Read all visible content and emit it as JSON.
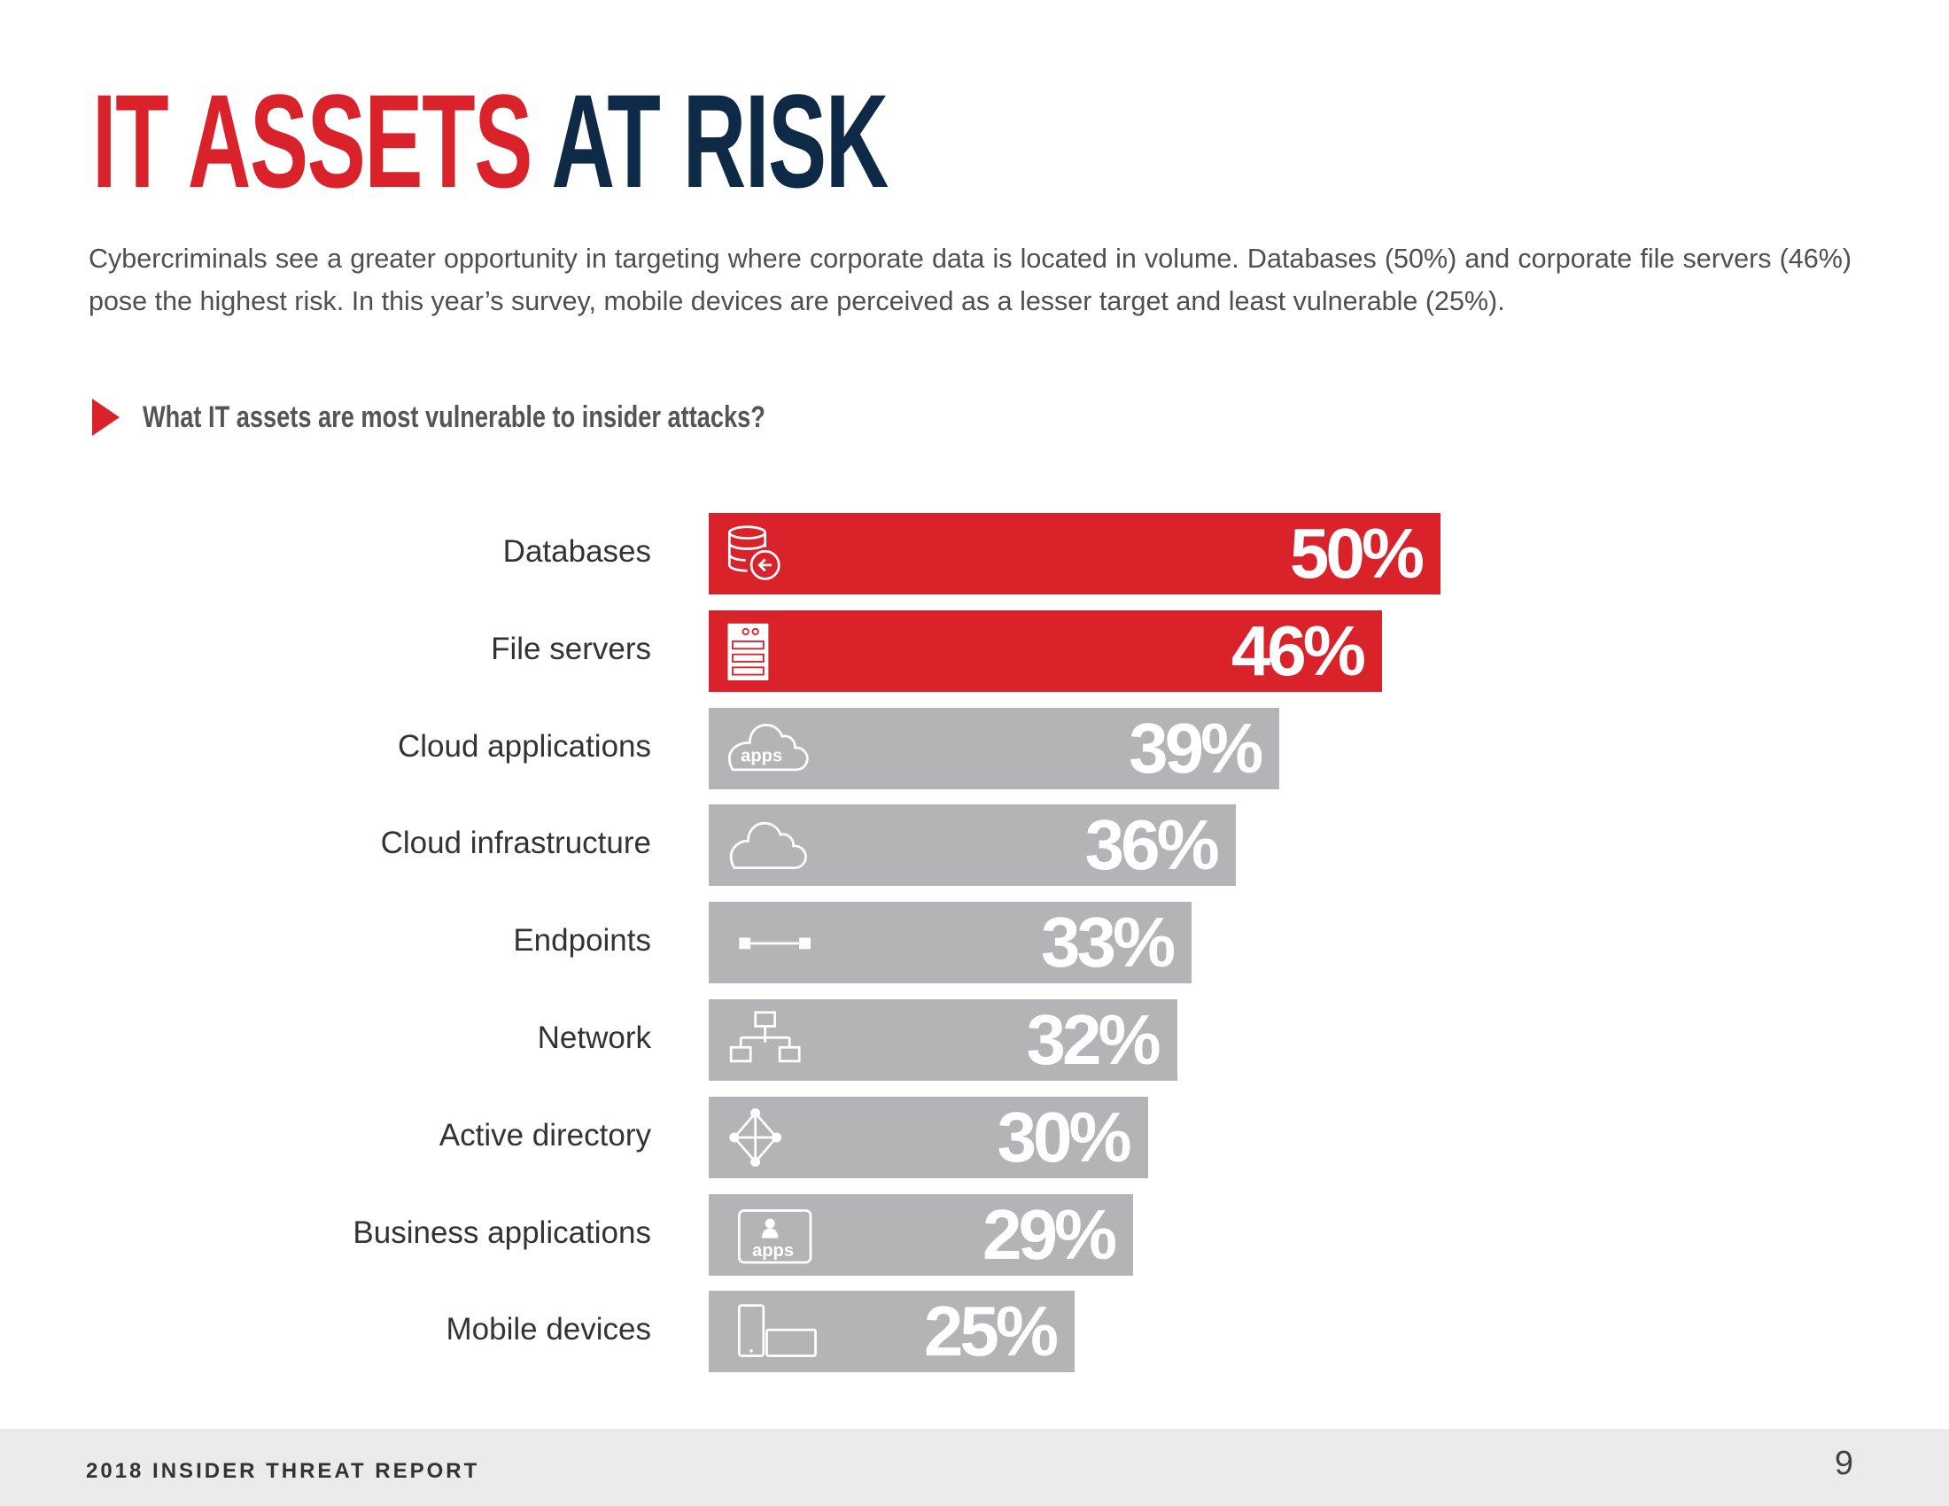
{
  "title": {
    "part1": "IT ASSETS",
    "part2": "AT RISK"
  },
  "intro": "Cybercriminals see a greater opportunity in targeting where corporate data is located in volume.  Databases (50%) and corporate file servers (46%) pose the highest risk. In this year’s survey, mobile devices are perceived as a lesser target and least vulnerable (25%).",
  "question": "What IT assets are most vulnerable to insider attacks?",
  "colors": {
    "highlight": "#d9222a",
    "default": "#b3b4b6",
    "title_navy": "#0e2a47"
  },
  "chart_data": {
    "type": "bar",
    "orientation": "horizontal",
    "title": "What IT assets are most vulnerable to insider attacks?",
    "categories": [
      "Databases",
      "File servers",
      "Cloud applications",
      "Cloud infrastructure",
      "Endpoints",
      "Network",
      "Active directory",
      "Business applications",
      "Mobile devices"
    ],
    "values": [
      50,
      46,
      39,
      36,
      33,
      32,
      30,
      29,
      25
    ],
    "labels": [
      "50%",
      "46%",
      "39%",
      "36%",
      "33%",
      "32%",
      "30%",
      "29%",
      "25%"
    ],
    "icons": [
      "database-icon",
      "file-server-icon",
      "cloud-apps-icon",
      "cloud-icon",
      "endpoint-icon",
      "network-icon",
      "active-directory-icon",
      "business-apps-icon",
      "mobile-devices-icon"
    ],
    "highlighted": [
      true,
      true,
      false,
      false,
      false,
      false,
      false,
      false,
      false
    ],
    "unit": "%",
    "grid": false
  },
  "footer": {
    "report": "2018 INSIDER THREAT REPORT",
    "page": "9"
  }
}
